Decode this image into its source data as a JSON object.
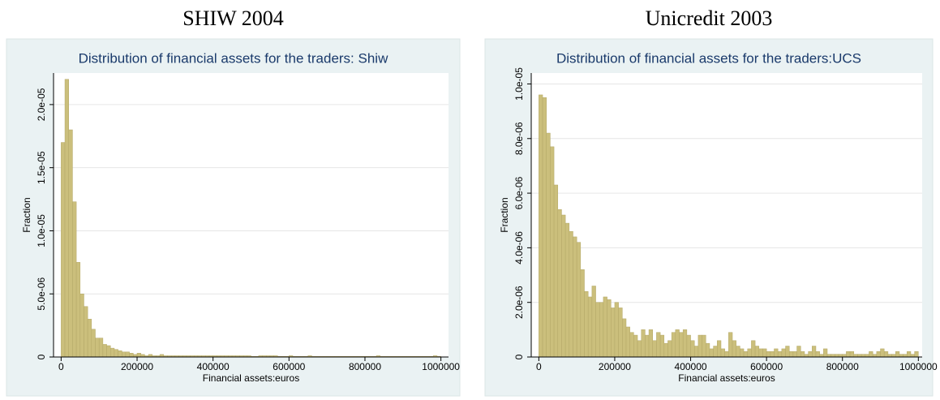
{
  "chart_data": [
    {
      "type": "histogram",
      "heading": "SHIW 2004",
      "title": "Distribution of financial assets  for the traders: Shiw",
      "xlabel": "Financial assets:euros",
      "ylabel": "Fraction",
      "color": "#cbbf7c",
      "grid": true,
      "xlim": [
        -20000,
        1020000
      ],
      "ylim": [
        0,
        2.25e-05
      ],
      "xticks": [
        0,
        200000,
        400000,
        600000,
        800000,
        1000000
      ],
      "yticks": [
        0,
        {
          "value": 5e-06,
          "label": "5.0e-06"
        },
        {
          "value": 1e-05,
          "label": "1.0e-05"
        },
        {
          "value": 1.5e-05,
          "label": "1.5e-05"
        },
        {
          "value": 2e-05,
          "label": "2.0e-05"
        }
      ],
      "bins": [
        0,
        10000,
        20000,
        30000,
        40000,
        50000,
        60000,
        70000,
        80000,
        90000,
        100000,
        110000,
        120000,
        130000,
        140000,
        150000,
        160000,
        170000,
        180000,
        190000,
        200000,
        210000,
        220000,
        230000,
        240000,
        250000,
        260000,
        270000,
        280000,
        290000,
        300000,
        310000,
        320000,
        330000,
        340000,
        350000,
        360000,
        370000,
        380000,
        390000,
        400000,
        410000,
        420000,
        430000,
        440000,
        450000,
        460000,
        470000,
        480000,
        490000,
        500000,
        510000,
        520000,
        530000,
        540000,
        550000,
        560000,
        570000,
        580000,
        590000,
        600000,
        610000,
        620000,
        630000,
        640000,
        650000,
        660000,
        670000,
        680000,
        690000,
        700000,
        710000,
        720000,
        730000,
        740000,
        750000,
        760000,
        770000,
        780000,
        790000,
        800000,
        810000,
        820000,
        830000,
        840000,
        850000,
        860000,
        870000,
        880000,
        890000,
        900000,
        910000,
        920000,
        930000,
        940000,
        950000,
        960000,
        970000,
        980000,
        990000,
        1000000
      ],
      "values": [
        1.7e-05,
        2.2e-05,
        1.8e-05,
        1.23e-05,
        7.5e-06,
        5e-06,
        4e-06,
        3e-06,
        2.2e-06,
        1.5e-06,
        1.5e-06,
        1e-06,
        9e-07,
        7e-07,
        6e-07,
        5e-07,
        4e-07,
        4e-07,
        3e-07,
        2e-07,
        3e-07,
        2e-07,
        1e-07,
        2e-07,
        1e-07,
        1e-07,
        2e-07,
        1e-07,
        1e-07,
        1e-07,
        1e-07,
        1e-07,
        1e-07,
        1e-07,
        1e-07,
        1e-07,
        1e-07,
        1e-07,
        1e-07,
        1e-07,
        1e-07,
        1e-07,
        1e-07,
        1e-07,
        1e-07,
        1e-07,
        1e-07,
        1e-07,
        1e-07,
        1e-07,
        5e-08,
        5e-08,
        1e-07,
        1e-07,
        1e-07,
        1e-07,
        1e-07,
        5e-08,
        5e-08,
        5e-08,
        1e-07,
        5e-08,
        5e-08,
        5e-08,
        5e-08,
        1e-07,
        5e-08,
        5e-08,
        5e-08,
        5e-08,
        5e-08,
        5e-08,
        5e-08,
        5e-08,
        5e-08,
        5e-08,
        5e-08,
        5e-08,
        5e-08,
        5e-08,
        5e-08,
        5e-08,
        5e-08,
        1e-07,
        5e-08,
        5e-08,
        5e-08,
        5e-08,
        5e-08,
        5e-08,
        5e-08,
        5e-08,
        5e-08,
        5e-08,
        5e-08,
        5e-08,
        5e-08,
        5e-08,
        1e-07,
        5e-08
      ]
    },
    {
      "type": "histogram",
      "heading": "Unicredit 2003",
      "title": "Distribution of financial assets for the traders:UCS",
      "xlabel": "Financial assets:euros",
      "ylabel": "Fraction",
      "color": "#cbbf7c",
      "grid": true,
      "xlim": [
        -20000,
        1010000
      ],
      "ylim": [
        0,
        1.04e-05
      ],
      "xticks": [
        0,
        200000,
        400000,
        600000,
        800000,
        1000000
      ],
      "yticks": [
        0,
        {
          "value": 2e-06,
          "label": "2.0e-06"
        },
        {
          "value": 4e-06,
          "label": "4.0e-06"
        },
        {
          "value": 6e-06,
          "label": "6.0e-06"
        },
        {
          "value": 8e-06,
          "label": "8.0e-06"
        },
        {
          "value": 1e-05,
          "label": "1.0e-05"
        }
      ],
      "bins": [
        0,
        10000,
        20000,
        30000,
        40000,
        50000,
        60000,
        70000,
        80000,
        90000,
        100000,
        110000,
        120000,
        130000,
        140000,
        150000,
        160000,
        170000,
        180000,
        190000,
        200000,
        210000,
        220000,
        230000,
        240000,
        250000,
        260000,
        270000,
        280000,
        290000,
        300000,
        310000,
        320000,
        330000,
        340000,
        350000,
        360000,
        370000,
        380000,
        390000,
        400000,
        410000,
        420000,
        430000,
        440000,
        450000,
        460000,
        470000,
        480000,
        490000,
        500000,
        510000,
        520000,
        530000,
        540000,
        550000,
        560000,
        570000,
        580000,
        590000,
        600000,
        610000,
        620000,
        630000,
        640000,
        650000,
        660000,
        670000,
        680000,
        690000,
        700000,
        710000,
        720000,
        730000,
        740000,
        750000,
        760000,
        770000,
        780000,
        790000,
        800000,
        810000,
        820000,
        830000,
        840000,
        850000,
        860000,
        870000,
        880000,
        890000,
        900000,
        910000,
        920000,
        930000,
        940000,
        950000,
        960000,
        970000,
        980000,
        990000,
        1000000
      ],
      "values": [
        9.6e-06,
        9.5e-06,
        8.2e-06,
        7.7e-06,
        6.3e-06,
        5.4e-06,
        5.2e-06,
        4.9e-06,
        4.6e-06,
        4.4e-06,
        4.2e-06,
        3.2e-06,
        2.4e-06,
        2.2e-06,
        2.6e-06,
        2e-06,
        2e-06,
        2.2e-06,
        2.1e-06,
        1.8e-06,
        2e-06,
        1.8e-06,
        1.4e-06,
        1.1e-06,
        9e-07,
        8e-07,
        6e-07,
        1e-06,
        8e-07,
        1e-06,
        6e-07,
        9e-07,
        8e-07,
        5e-07,
        6e-07,
        9e-07,
        1e-06,
        9e-07,
        1e-06,
        8e-07,
        6e-07,
        4e-07,
        8e-07,
        8e-07,
        5e-07,
        3e-07,
        4e-07,
        6e-07,
        3e-07,
        2e-07,
        9e-07,
        6e-07,
        4e-07,
        3e-07,
        2e-07,
        3e-07,
        6e-07,
        4e-07,
        3e-07,
        3e-07,
        2e-07,
        2e-07,
        3e-07,
        2e-07,
        3e-07,
        4e-07,
        2e-07,
        2e-07,
        4e-07,
        2e-07,
        1e-07,
        2e-07,
        4e-07,
        2e-07,
        1e-07,
        3e-07,
        1e-07,
        1e-07,
        1e-07,
        1e-07,
        1e-07,
        2e-07,
        2e-07,
        1e-07,
        1e-07,
        1e-07,
        1e-07,
        2e-07,
        1e-07,
        2e-07,
        3e-07,
        2e-07,
        1e-07,
        1e-07,
        2e-07,
        1e-07,
        1e-07,
        2e-07,
        1e-07,
        2e-07
      ]
    }
  ]
}
